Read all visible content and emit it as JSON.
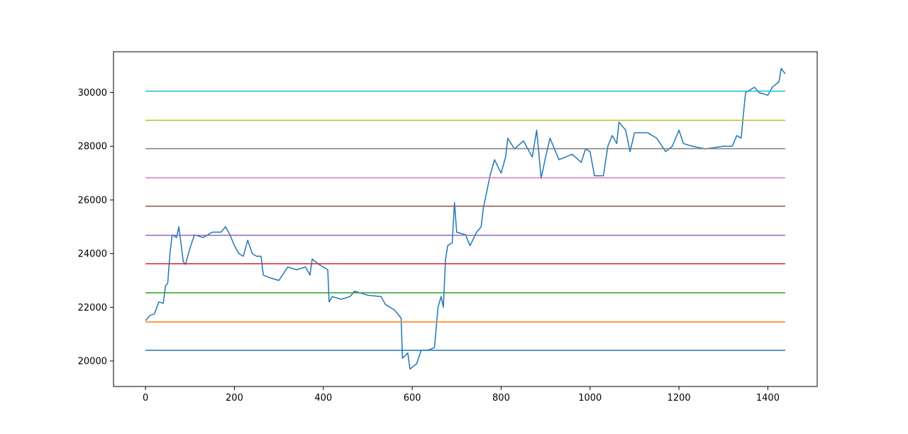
{
  "chart_data": {
    "type": "line",
    "xlim": [
      -72,
      1511
    ],
    "ylim": [
      19050,
      31520
    ],
    "xticks": [
      0,
      200,
      400,
      600,
      800,
      1000,
      1200,
      1400
    ],
    "yticks": [
      20000,
      22000,
      24000,
      26000,
      28000,
      30000
    ],
    "series": [
      {
        "color": "#1f77b4",
        "x": [
          0,
          10,
          20,
          30,
          40,
          45,
          50,
          55,
          60,
          70,
          75,
          85,
          90,
          100,
          110,
          130,
          150,
          170,
          180,
          190,
          200,
          210,
          220,
          230,
          240,
          250,
          260,
          265,
          280,
          300,
          320,
          340,
          360,
          370,
          375,
          390,
          410,
          413,
          420,
          440,
          460,
          470,
          500,
          530,
          540,
          560,
          575,
          578,
          590,
          595,
          610,
          620,
          635,
          650,
          658,
          665,
          670,
          675,
          680,
          690,
          695,
          700,
          720,
          730,
          745,
          755,
          760,
          770,
          775,
          785,
          800,
          810,
          815,
          830,
          850,
          870,
          880,
          890,
          900,
          910,
          930,
          960,
          980,
          990,
          1000,
          1010,
          1030,
          1040,
          1050,
          1060,
          1065,
          1080,
          1090,
          1100,
          1130,
          1150,
          1170,
          1185,
          1200,
          1210,
          1230,
          1260,
          1300,
          1320,
          1330,
          1340,
          1345,
          1350,
          1370,
          1380,
          1400,
          1410,
          1425,
          1430,
          1439
        ],
        "values": [
          21500,
          21700,
          21750,
          22200,
          22150,
          22800,
          22900,
          24000,
          24700,
          24600,
          25000,
          23700,
          23600,
          24200,
          24700,
          24600,
          24800,
          24800,
          25000,
          24700,
          24300,
          24000,
          23900,
          24500,
          24000,
          23900,
          23900,
          23200,
          23100,
          23000,
          23500,
          23400,
          23500,
          23200,
          23800,
          23600,
          23400,
          22200,
          22400,
          22300,
          22400,
          22600,
          22450,
          22400,
          22100,
          21900,
          21600,
          20100,
          20300,
          19700,
          19900,
          20400,
          20400,
          20500,
          22000,
          22400,
          22000,
          23800,
          24300,
          24400,
          25900,
          24800,
          24700,
          24300,
          24800,
          25000,
          25700,
          26500,
          26900,
          27500,
          27000,
          27600,
          28300,
          27900,
          28200,
          27600,
          28600,
          26800,
          27600,
          28300,
          27500,
          27700,
          27400,
          27900,
          27800,
          26900,
          26900,
          28000,
          28400,
          28100,
          28900,
          28600,
          27800,
          28500,
          28500,
          28300,
          27800,
          28000,
          28600,
          28100,
          28000,
          27900,
          28000,
          28000,
          28400,
          28300,
          29200,
          30000,
          30200,
          30000,
          29900,
          30200,
          30400,
          30900,
          30700
        ]
      }
    ],
    "hline_xrange": [
      0,
      1439
    ],
    "hlines": [
      {
        "value": 20397,
        "color": "#1f77b4"
      },
      {
        "value": 21455,
        "color": "#ff7f0e"
      },
      {
        "value": 22540,
        "color": "#2ca02c"
      },
      {
        "value": 23624,
        "color": "#d62728"
      },
      {
        "value": 24683,
        "color": "#9467bd"
      },
      {
        "value": 25767,
        "color": "#8c564b"
      },
      {
        "value": 26825,
        "color": "#e377c2"
      },
      {
        "value": 27910,
        "color": "#7f7f7f"
      },
      {
        "value": 28968,
        "color": "#bcbd22"
      },
      {
        "value": 30053,
        "color": "#17becf"
      }
    ]
  }
}
